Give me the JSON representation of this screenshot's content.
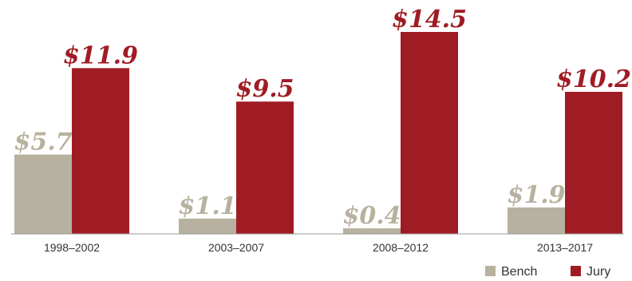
{
  "chart_data": {
    "type": "bar",
    "title": "",
    "xlabel": "",
    "ylabel": "",
    "categories": [
      "1998–2002",
      "2003–2007",
      "2008–2012",
      "2013–2017"
    ],
    "series": [
      {
        "name": "Bench",
        "color": "#b7b19f",
        "values": [
          5.7,
          1.1,
          0.4,
          1.9
        ],
        "labels": [
          "$5.7",
          "$1.1",
          "$0.4",
          "$1.9"
        ]
      },
      {
        "name": "Jury",
        "color": "#a01c24",
        "values": [
          11.9,
          9.5,
          14.5,
          10.2
        ],
        "labels": [
          "$11.9",
          "$9.5",
          "$14.5",
          "$10.2"
        ]
      }
    ],
    "ylim": [
      0,
      14.5
    ],
    "grid": false,
    "legend": "bottom-right"
  }
}
